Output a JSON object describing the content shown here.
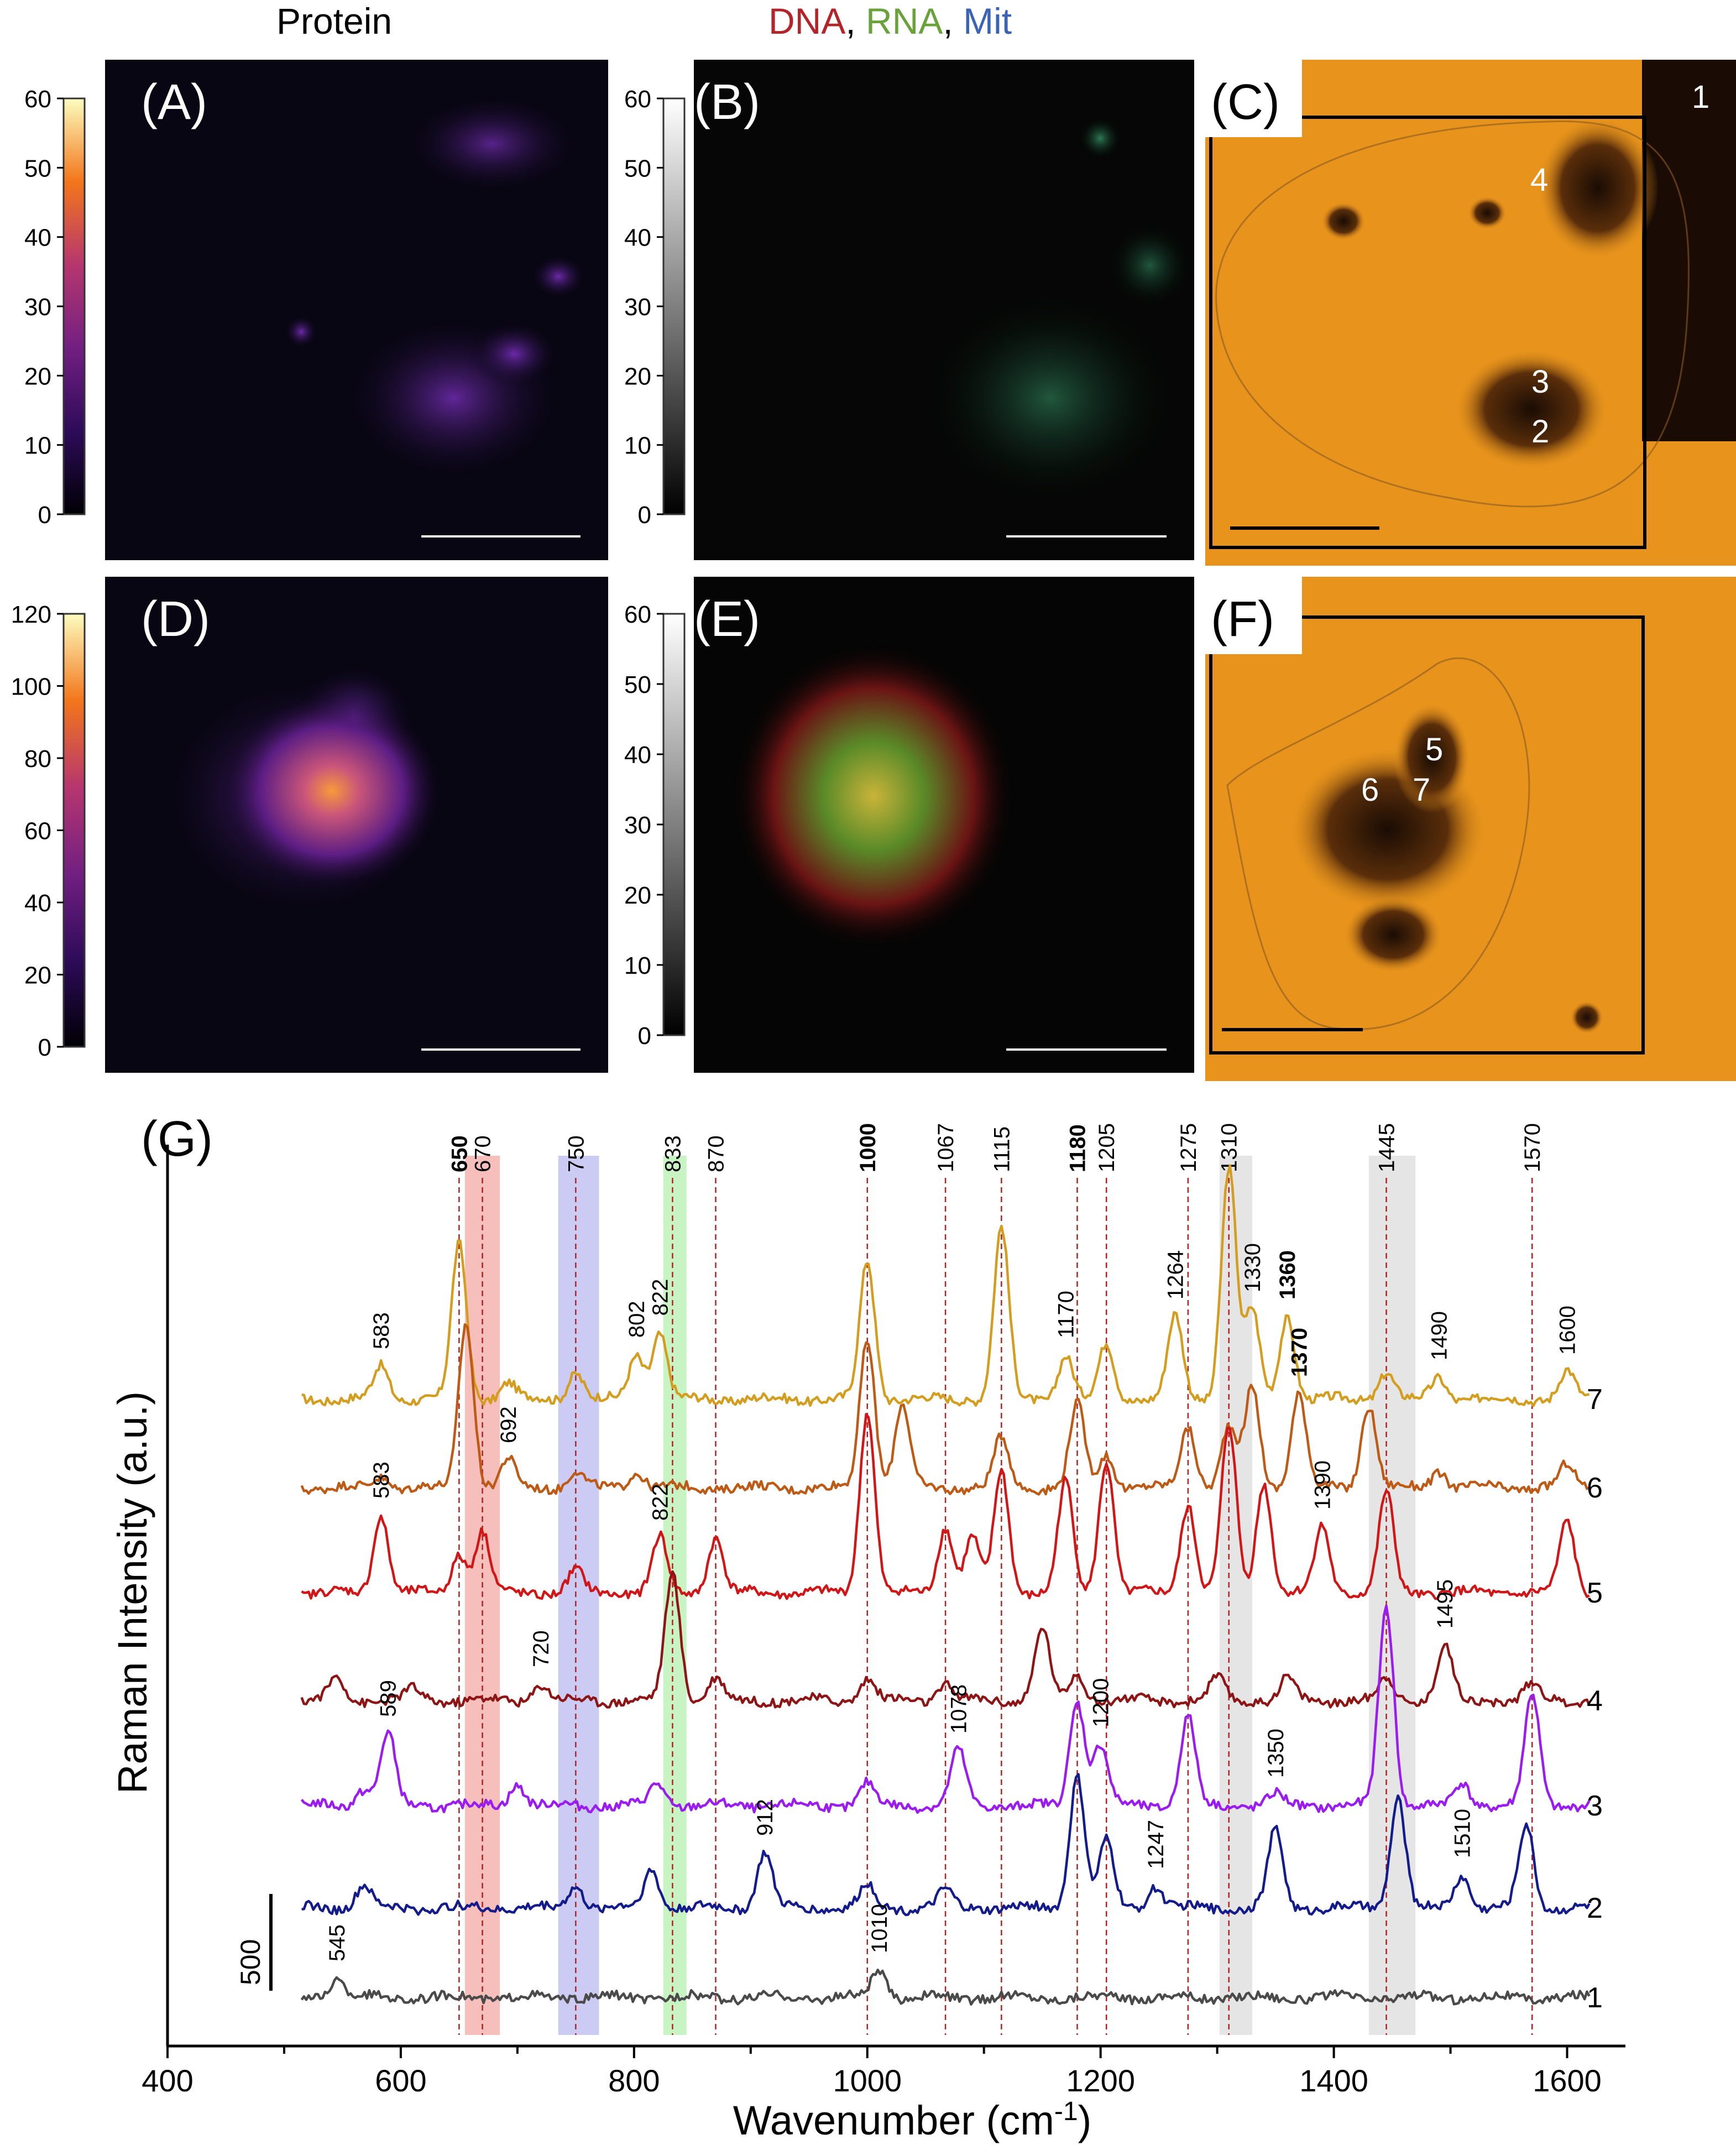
{
  "headers": {
    "protein": "Protein",
    "dna": "DNA",
    "comma": ", ",
    "rna": "RNA",
    "mit": "Mit"
  },
  "panels": {
    "A": "(A)",
    "B": "(B)",
    "C": "(C)",
    "D": "(D)",
    "E": "(E)",
    "F": "(F)",
    "G": "(G)"
  },
  "colorbars": {
    "protein_top": {
      "ticks": [
        "0",
        "10",
        "20",
        "30",
        "40",
        "50",
        "60"
      ],
      "range": [
        0,
        60
      ]
    },
    "rgb_top": {
      "ticks": [
        "0",
        "10",
        "20",
        "30",
        "40",
        "50",
        "60"
      ],
      "range": [
        0,
        60
      ]
    },
    "protein_bottom": {
      "ticks": [
        "0",
        "20",
        "40",
        "60",
        "80",
        "100",
        "120"
      ],
      "range": [
        0,
        120
      ]
    },
    "rgb_bottom": {
      "ticks": [
        "0",
        "10",
        "20",
        "30",
        "40",
        "50",
        "60"
      ],
      "range": [
        0,
        60
      ]
    }
  },
  "point_labels": {
    "C": [
      "1",
      "2",
      "3",
      "4"
    ],
    "F": [
      "5",
      "6",
      "7"
    ]
  },
  "chart_data": {
    "type": "line",
    "title": "",
    "xlabel": "Wavenumber (cm-1)",
    "xlabel_main": "Wavenumber (cm",
    "xlabel_sup": "-1",
    "xlabel_close": ")",
    "ylabel": "Raman Intensity (a.u.)",
    "xlim": [
      400,
      1650
    ],
    "xticks": [
      "400",
      "600",
      "800",
      "1000",
      "1200",
      "1400",
      "1600"
    ],
    "scale_bar": "500",
    "reference_lines": [
      {
        "x": 650,
        "label": "650",
        "bold": true
      },
      {
        "x": 670,
        "label": "670",
        "bold": false
      },
      {
        "x": 750,
        "label": "750",
        "bold": false
      },
      {
        "x": 833,
        "label": "833",
        "bold": false
      },
      {
        "x": 870,
        "label": "870",
        "bold": false
      },
      {
        "x": 1000,
        "label": "1000",
        "bold": true
      },
      {
        "x": 1067,
        "label": "1067",
        "bold": false
      },
      {
        "x": 1115,
        "label": "1115",
        "bold": false
      },
      {
        "x": 1180,
        "label": "1180",
        "bold": true
      },
      {
        "x": 1205,
        "label": "1205",
        "bold": false
      },
      {
        "x": 1275,
        "label": "1275",
        "bold": false
      },
      {
        "x": 1310,
        "label": "1310",
        "bold": false
      },
      {
        "x": 1445,
        "label": "1445",
        "bold": false
      },
      {
        "x": 1570,
        "label": "1570",
        "bold": false
      }
    ],
    "bands": [
      {
        "from": 655,
        "to": 685,
        "color": "#f4a9a4"
      },
      {
        "from": 735,
        "to": 770,
        "color": "#b9b9ef"
      },
      {
        "from": 825,
        "to": 845,
        "color": "#b5f0b0"
      },
      {
        "from": 1302,
        "to": 1330,
        "color": "#dcdcdc"
      },
      {
        "from": 1430,
        "to": 1470,
        "color": "#dcdcdc"
      }
    ],
    "series": [
      {
        "name": "7",
        "color": "#d39e1f",
        "baseline": 2530,
        "peaks": [
          [
            583,
            60
          ],
          [
            650,
            280
          ],
          [
            692,
            30
          ],
          [
            750,
            50
          ],
          [
            802,
            80
          ],
          [
            822,
            120
          ],
          [
            1000,
            250
          ],
          [
            1115,
            310
          ],
          [
            1170,
            80
          ],
          [
            1205,
            100
          ],
          [
            1264,
            150
          ],
          [
            1310,
            420
          ],
          [
            1330,
            160
          ],
          [
            1360,
            150
          ],
          [
            1445,
            50
          ],
          [
            1490,
            40
          ],
          [
            1600,
            50
          ]
        ]
      },
      {
        "name": "6",
        "color": "#bd5a16",
        "baseline": 2690,
        "peaks": [
          [
            583,
            20
          ],
          [
            656,
            300
          ],
          [
            692,
            50
          ],
          [
            750,
            30
          ],
          [
            802,
            30
          ],
          [
            1000,
            270
          ],
          [
            1030,
            150
          ],
          [
            1115,
            90
          ],
          [
            1180,
            150
          ],
          [
            1205,
            60
          ],
          [
            1275,
            110
          ],
          [
            1310,
            110
          ],
          [
            1330,
            180
          ],
          [
            1370,
            170
          ],
          [
            1430,
            150
          ],
          [
            1490,
            30
          ],
          [
            1600,
            40
          ]
        ]
      },
      {
        "name": "5",
        "color": "#d01616",
        "baseline": 2880,
        "peaks": [
          [
            583,
            140
          ],
          [
            650,
            70
          ],
          [
            670,
            110
          ],
          [
            750,
            40
          ],
          [
            822,
            100
          ],
          [
            870,
            100
          ],
          [
            1000,
            330
          ],
          [
            1067,
            120
          ],
          [
            1090,
            100
          ],
          [
            1115,
            220
          ],
          [
            1170,
            200
          ],
          [
            1205,
            240
          ],
          [
            1275,
            160
          ],
          [
            1310,
            300
          ],
          [
            1340,
            200
          ],
          [
            1390,
            120
          ],
          [
            1445,
            180
          ],
          [
            1600,
            130
          ]
        ]
      },
      {
        "name": "4",
        "color": "#8e1515",
        "baseline": 3075,
        "peaks": [
          [
            545,
            40
          ],
          [
            610,
            20
          ],
          [
            720,
            30
          ],
          [
            833,
            230
          ],
          [
            870,
            40
          ],
          [
            1000,
            40
          ],
          [
            1067,
            30
          ],
          [
            1150,
            130
          ],
          [
            1180,
            50
          ],
          [
            1300,
            40
          ],
          [
            1360,
            40
          ],
          [
            1445,
            40
          ],
          [
            1495,
            100
          ],
          [
            1570,
            30
          ]
        ]
      },
      {
        "name": "3",
        "color": "#9a1cf0",
        "baseline": 3265,
        "peaks": [
          [
            568,
            30
          ],
          [
            589,
            130
          ],
          [
            700,
            40
          ],
          [
            820,
            40
          ],
          [
            1000,
            40
          ],
          [
            1078,
            100
          ],
          [
            1180,
            190
          ],
          [
            1200,
            110
          ],
          [
            1275,
            160
          ],
          [
            1350,
            20
          ],
          [
            1445,
            360
          ],
          [
            1510,
            40
          ],
          [
            1570,
            200
          ]
        ]
      },
      {
        "name": "2",
        "color": "#141c8c",
        "baseline": 3450,
        "peaks": [
          [
            568,
            40
          ],
          [
            750,
            40
          ],
          [
            815,
            70
          ],
          [
            912,
            100
          ],
          [
            1000,
            40
          ],
          [
            1067,
            30
          ],
          [
            1180,
            240
          ],
          [
            1205,
            120
          ],
          [
            1247,
            40
          ],
          [
            1350,
            140
          ],
          [
            1455,
            200
          ],
          [
            1510,
            60
          ],
          [
            1565,
            150
          ]
        ]
      },
      {
        "name": "1",
        "color": "#4a4a4a",
        "baseline": 3612,
        "peaks": [
          [
            545,
            35
          ],
          [
            1010,
            50
          ]
        ]
      }
    ],
    "annotations": [
      {
        "text": "583",
        "x": 583,
        "series": "7",
        "bold": false
      },
      {
        "text": "802",
        "x": 802,
        "series": "7",
        "bold": false
      },
      {
        "text": "822",
        "x": 822,
        "series": "7",
        "bold": false
      },
      {
        "text": "1170",
        "x": 1170,
        "series": "7",
        "bold": false
      },
      {
        "text": "1264",
        "x": 1264,
        "series": "7",
        "bold": false
      },
      {
        "text": "1330",
        "x": 1330,
        "series": "7",
        "bold": false
      },
      {
        "text": "1360",
        "x": 1360,
        "series": "7",
        "bold": true
      },
      {
        "text": "1490",
        "x": 1490,
        "series": "7",
        "bold": false
      },
      {
        "text": "1600",
        "x": 1600,
        "series": "7",
        "bold": false
      },
      {
        "text": "692",
        "x": 692,
        "series": "6",
        "bold": false
      },
      {
        "text": "1370",
        "x": 1370,
        "series": "6",
        "bold": true
      },
      {
        "text": "583",
        "x": 583,
        "series": "5",
        "bold": false
      },
      {
        "text": "822",
        "x": 822,
        "series": "5",
        "bold": false
      },
      {
        "text": "1390",
        "x": 1390,
        "series": "5",
        "bold": false
      },
      {
        "text": "720",
        "x": 720,
        "series": "4",
        "bold": false
      },
      {
        "text": "1495",
        "x": 1495,
        "series": "4",
        "bold": false
      },
      {
        "text": "589",
        "x": 589,
        "series": "3",
        "bold": false
      },
      {
        "text": "1078",
        "x": 1078,
        "series": "3",
        "bold": false
      },
      {
        "text": "1200",
        "x": 1200,
        "series": "3",
        "bold": false
      },
      {
        "text": "1350",
        "x": 1350,
        "series": "3",
        "bold": false
      },
      {
        "text": "912",
        "x": 912,
        "series": "2",
        "bold": false
      },
      {
        "text": "1247",
        "x": 1247,
        "series": "2",
        "bold": false
      },
      {
        "text": "1510",
        "x": 1510,
        "series": "2",
        "bold": false
      },
      {
        "text": "545",
        "x": 545,
        "series": "1",
        "bold": false
      },
      {
        "text": "1010",
        "x": 1010,
        "series": "1",
        "bold": false
      }
    ]
  }
}
